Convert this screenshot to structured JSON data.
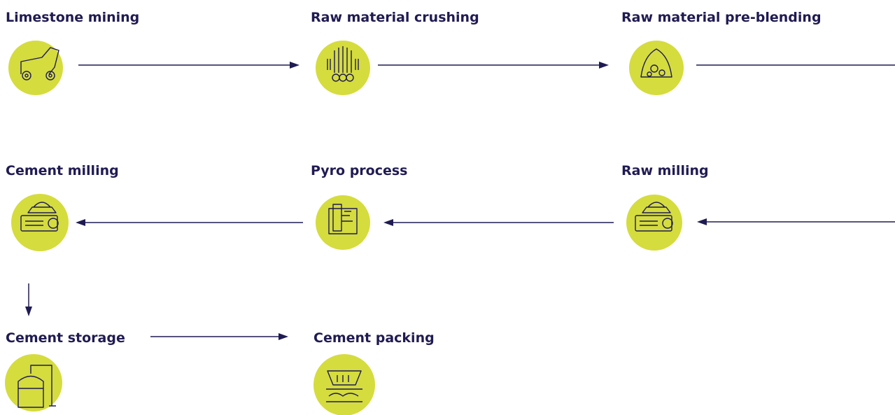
{
  "nodes": [
    {
      "label": "Limestone mining"
    },
    {
      "label": "Raw material crushing"
    },
    {
      "label": "Raw material pre-blending"
    },
    {
      "label": "Cement milling"
    },
    {
      "label": "Pyro process"
    },
    {
      "label": "Raw milling"
    },
    {
      "label": "Cement storage"
    },
    {
      "label": "Cement packing"
    }
  ]
}
